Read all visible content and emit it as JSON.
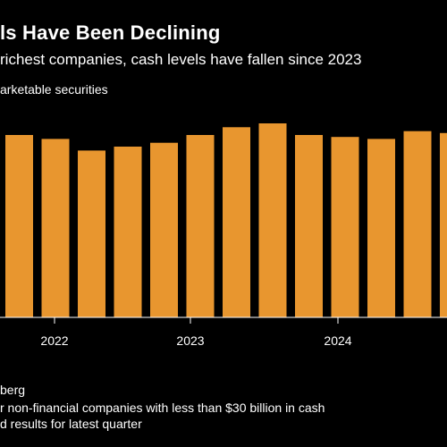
{
  "header": {
    "title": "ls Have Been Declining",
    "subtitle": "richest companies, cash levels have fallen since 2023",
    "unit": "arketable securities"
  },
  "footer": {
    "source": "berg",
    "note_1": "r non-financial companies with less than $30 billion in cash",
    "note_2": "d results for latest quarter"
  },
  "colors": {
    "bar": "#E8962F",
    "background": "#000000",
    "text": "#FFFFFF",
    "axis": "#FFFFFF"
  },
  "chart_data": {
    "type": "bar",
    "tick_labels": [
      "2022",
      "2023",
      "2024"
    ],
    "values": [
      94,
      92,
      86,
      88,
      90,
      94,
      98,
      100,
      94,
      93,
      92,
      96,
      95
    ],
    "ylim": [
      0,
      100
    ],
    "grid": false,
    "legend": "none"
  }
}
